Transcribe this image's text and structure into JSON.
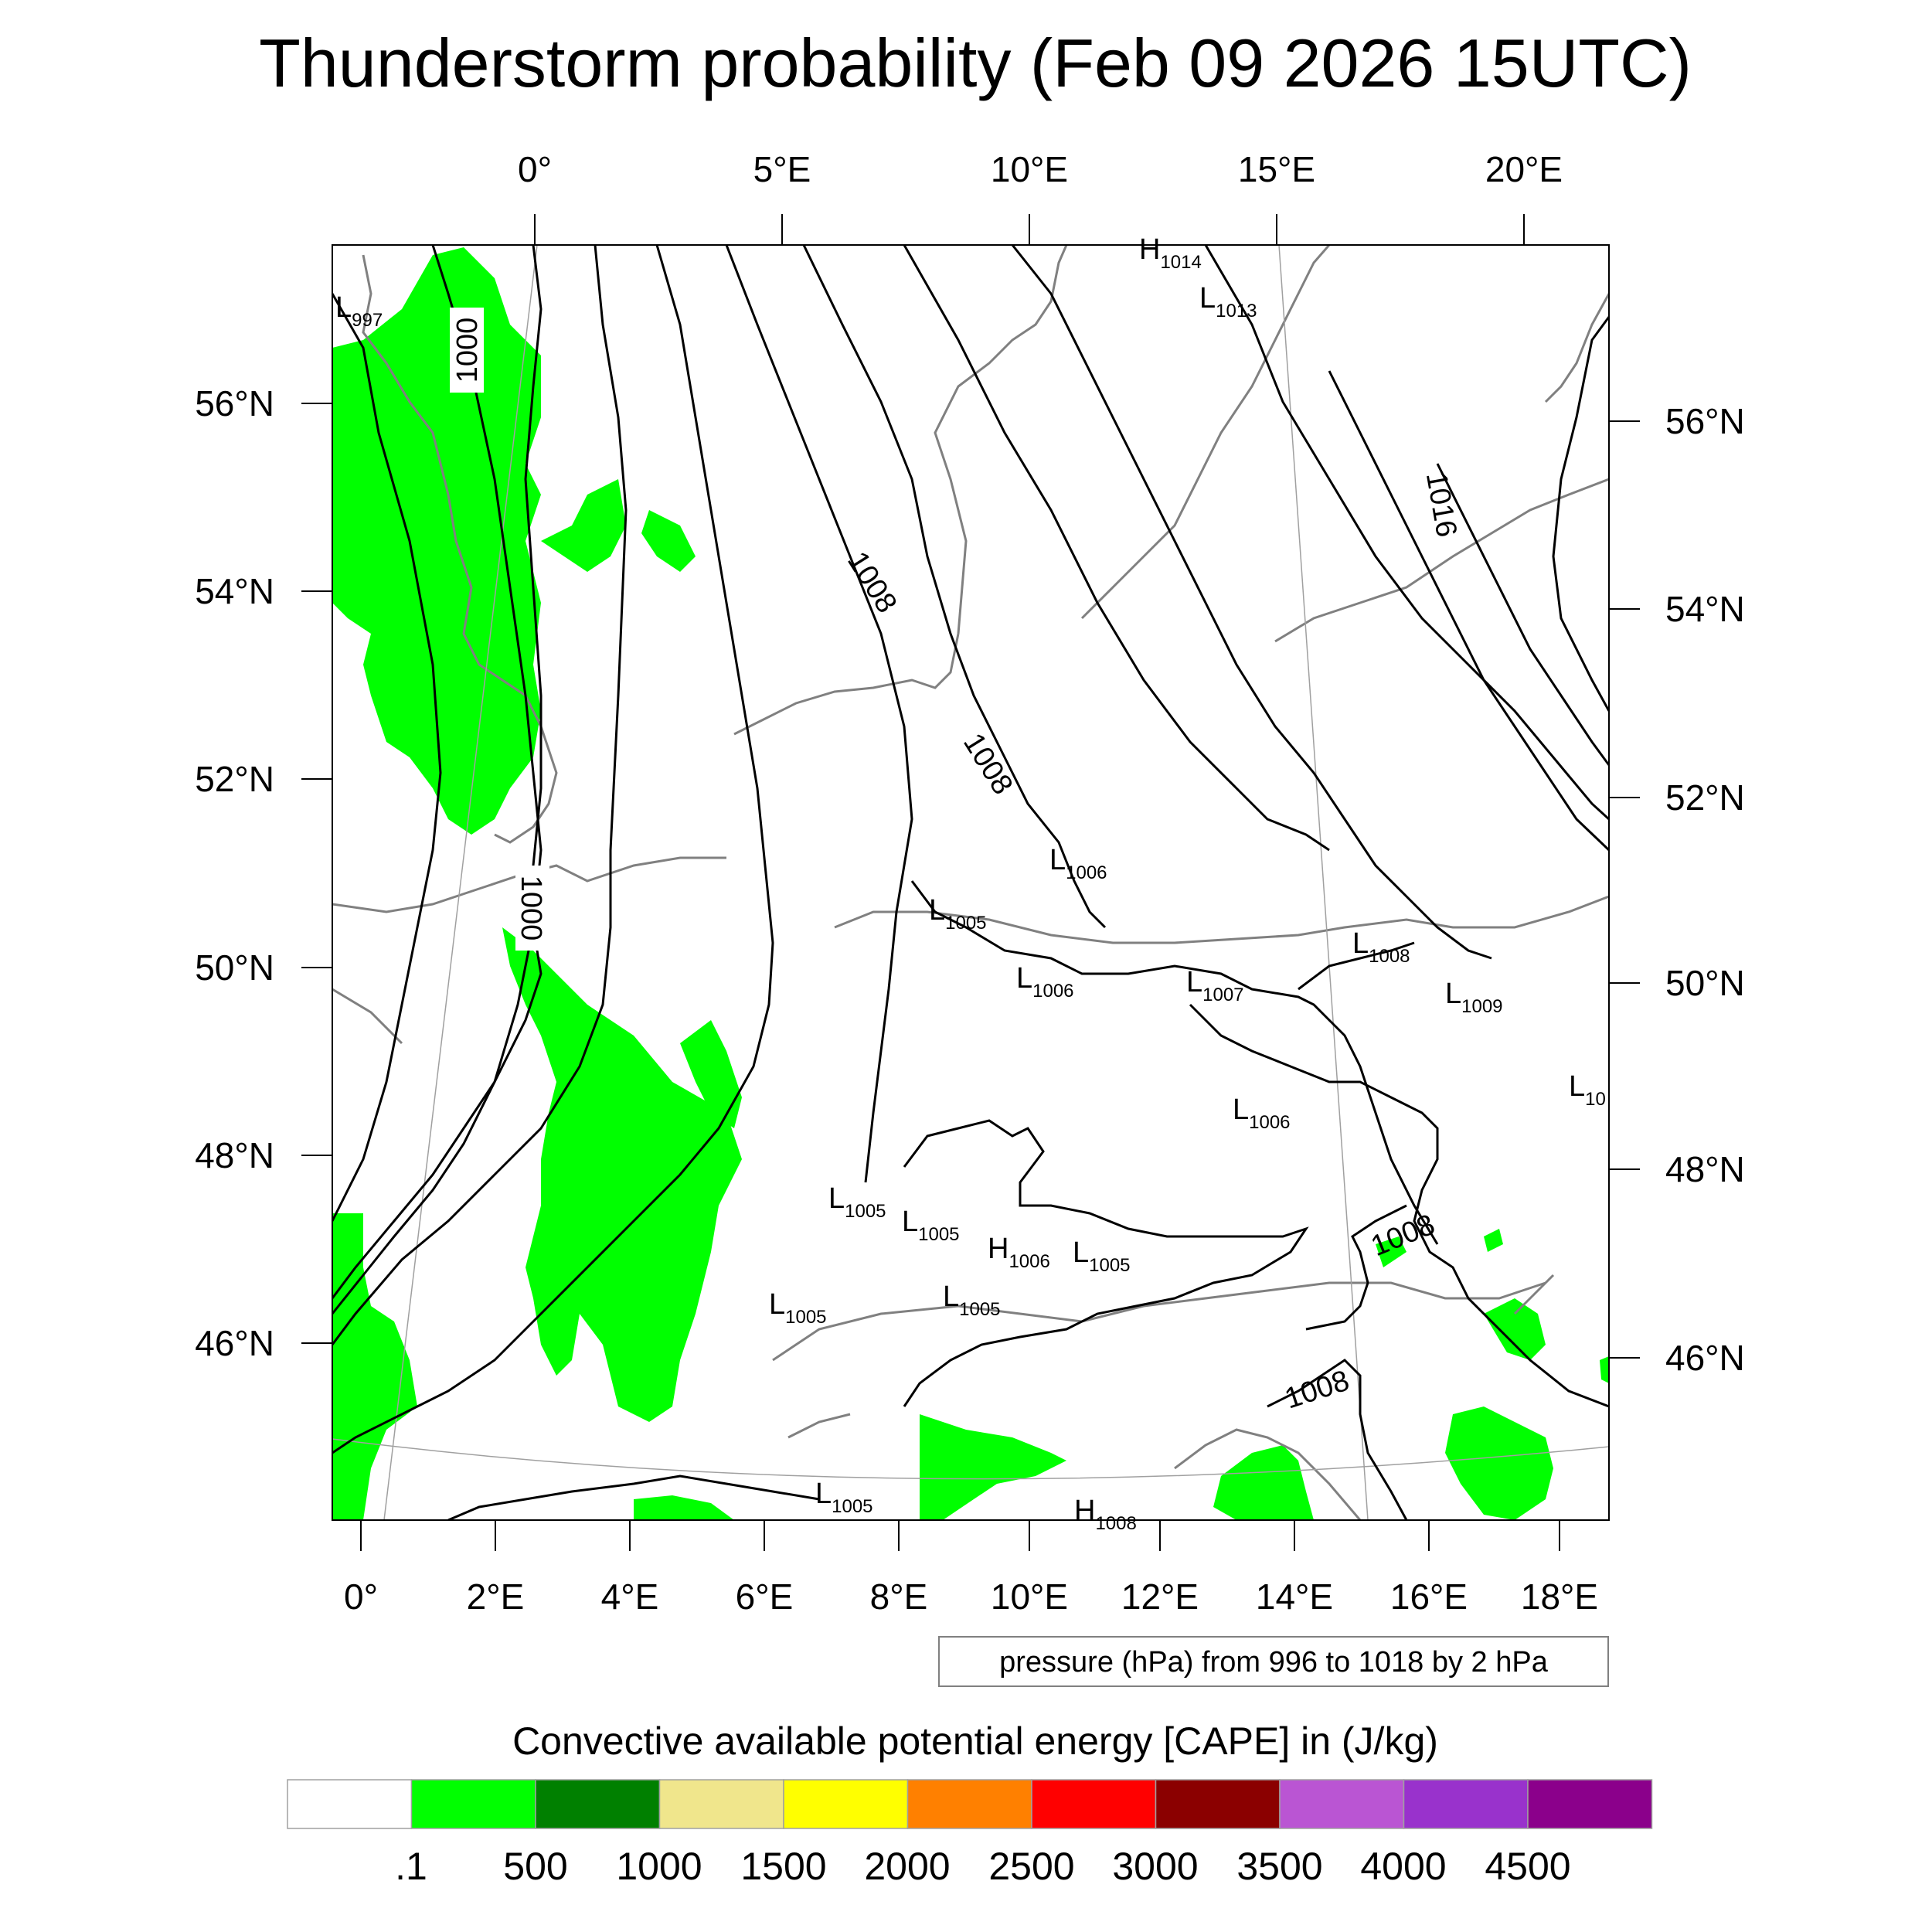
{
  "title": "Thunderstorm probability (Feb 09 2026 15UTC)",
  "top_lon_labels": [
    "0°",
    "5°E",
    "10°E",
    "15°E",
    "20°E"
  ],
  "left_lat_labels": [
    "56°N",
    "54°N",
    "52°N",
    "50°N",
    "48°N",
    "46°N"
  ],
  "right_lat_labels": [
    "56°N",
    "54°N",
    "52°N",
    "50°N",
    "48°N",
    "46°N"
  ],
  "bottom_lon_labels": [
    "0°",
    "2°E",
    "4°E",
    "6°E",
    "8°E",
    "10°E",
    "12°E",
    "14°E",
    "16°E",
    "18°E"
  ],
  "contour_note": "pressure (hPa) from 996 to 1018 by 2 hPa",
  "colorbar": {
    "title": "Convective available potential energy [CAPE] in (J/kg)",
    "colors": [
      "#ffffff",
      "#00ff00",
      "#008000",
      "#f0e68c",
      "#ffff00",
      "#ff8000",
      "#ff0000",
      "#8b0000",
      "#ba55d3",
      "#9932cc",
      "#8b008b"
    ],
    "tick_labels": [
      ".1",
      "500",
      "1000",
      "1500",
      "2000",
      "2500",
      "3000",
      "3500",
      "4000",
      "4500"
    ]
  },
  "isobar_labels": [
    "1000",
    "1000",
    "1008",
    "1008",
    "1016",
    "1008",
    "1008"
  ],
  "pressure_centers": [
    {
      "type": "L",
      "value": "997"
    },
    {
      "type": "H",
      "value": "1014"
    },
    {
      "type": "L",
      "value": "1013"
    },
    {
      "type": "L",
      "value": "1006"
    },
    {
      "type": "L",
      "value": "1005"
    },
    {
      "type": "L",
      "value": "1006"
    },
    {
      "type": "L",
      "value": "1007"
    },
    {
      "type": "L",
      "value": "1008"
    },
    {
      "type": "L",
      "value": "1009"
    },
    {
      "type": "L",
      "value": "10"
    },
    {
      "type": "L",
      "value": "1006"
    },
    {
      "type": "L",
      "value": "1005"
    },
    {
      "type": "L",
      "value": "1005"
    },
    {
      "type": "H",
      "value": "1006"
    },
    {
      "type": "L",
      "value": "1005"
    },
    {
      "type": "L",
      "value": "1005"
    },
    {
      "type": "L",
      "value": "1005"
    },
    {
      "type": "L",
      "value": "1005"
    },
    {
      "type": "H",
      "value": "1008"
    }
  ],
  "cape_shading_color": "#00ff00",
  "coastline_color": "#808080",
  "isobar_color": "#000000"
}
